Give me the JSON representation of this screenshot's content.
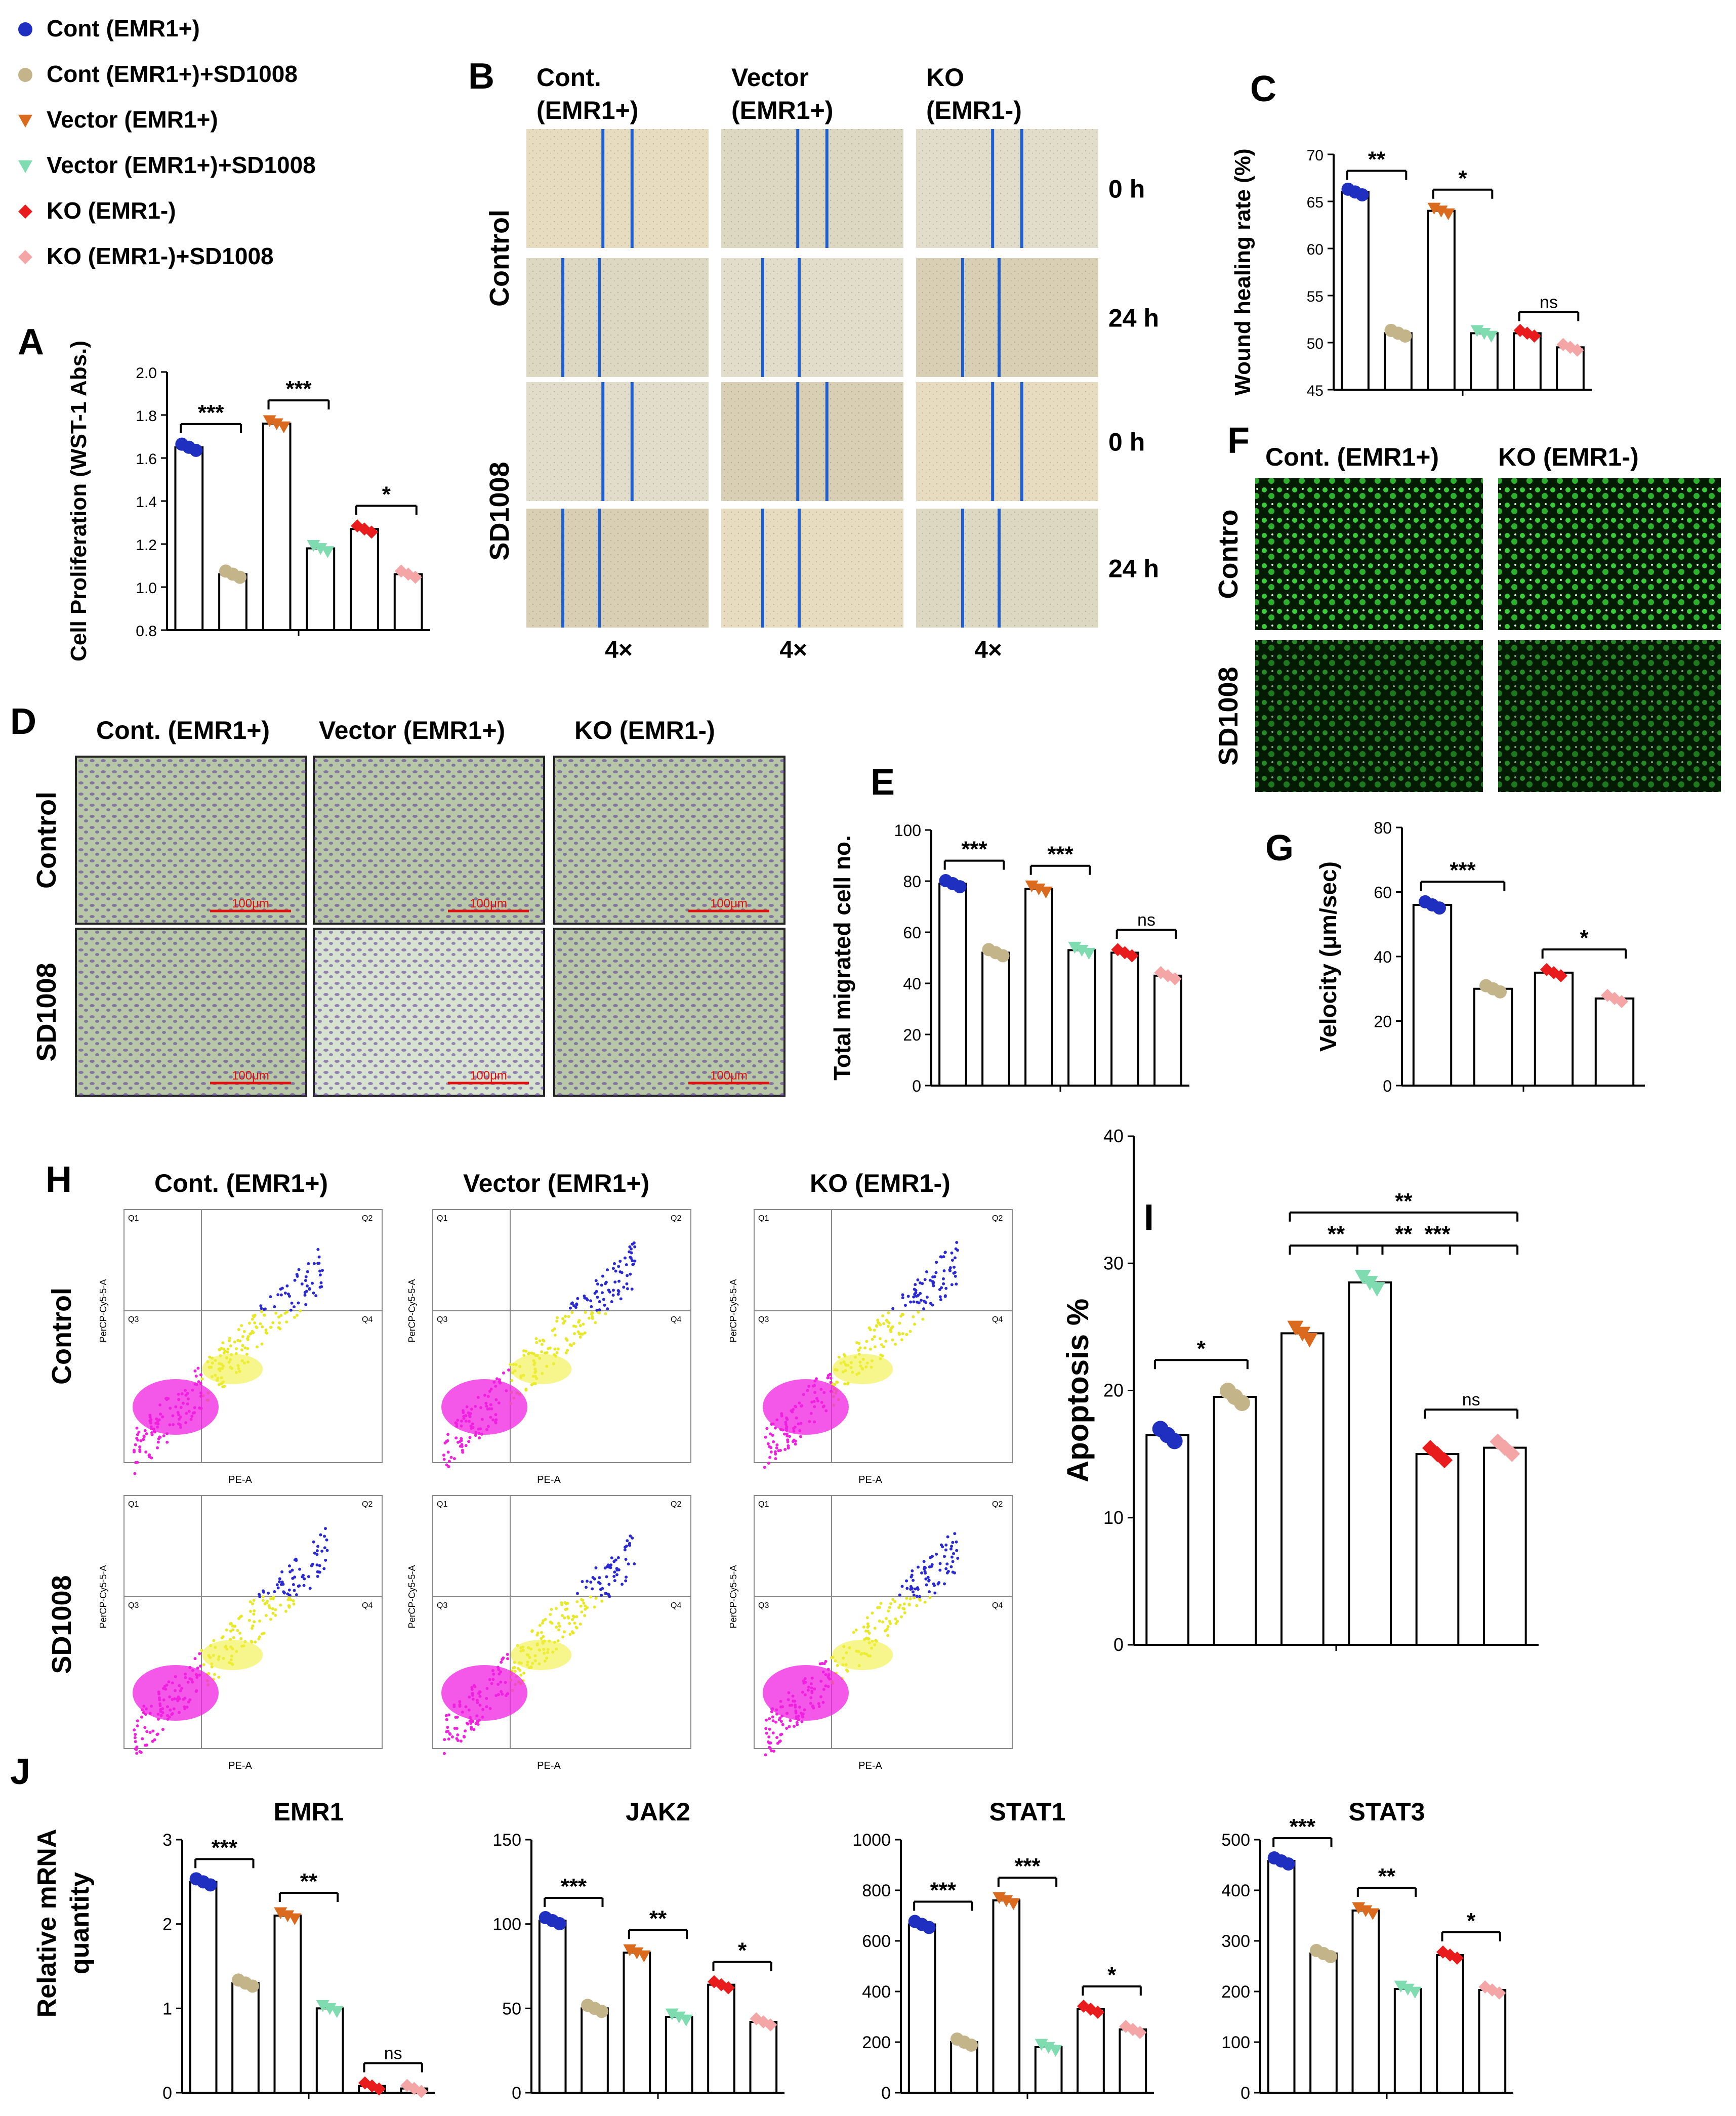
{
  "legend": [
    {
      "name": "Cont (EMR1+)",
      "color": "#1f2fbf",
      "marker": "circle"
    },
    {
      "name": "Cont (EMR1+)+SD1008",
      "color": "#c4b48a",
      "marker": "circle"
    },
    {
      "name": "Vector (EMR1+)",
      "color": "#d96a1e",
      "marker": "triangle-down"
    },
    {
      "name": "Vector (EMR1+)+SD1008",
      "color": "#7fdcb0",
      "marker": "triangle-down"
    },
    {
      "name": "KO (EMR1-)",
      "color": "#e81c1c",
      "marker": "diamond"
    },
    {
      "name": "KO (EMR1-)+SD1008",
      "color": "#f4a6a6",
      "marker": "diamond"
    }
  ],
  "panels": {
    "A": "A",
    "B": "B",
    "C": "C",
    "D": "D",
    "E": "E",
    "F": "F",
    "G": "G",
    "H": "H",
    "I": "I",
    "J": "J"
  },
  "panel_B": {
    "columns": [
      "Cont.\n(EMR1+)",
      "Vector\n(EMR1+)",
      "KO\n(EMR1-)"
    ],
    "rows": [
      "Control",
      "SD1008"
    ],
    "times": [
      "0 h",
      "24 h",
      "0 h",
      "24 h"
    ],
    "mag": [
      "4×",
      "4×",
      "4×"
    ]
  },
  "panel_D": {
    "columns": [
      "Cont. (EMR1+)",
      "Vector (EMR1+)",
      "KO (EMR1-)"
    ],
    "rows": [
      "Control",
      "SD1008"
    ],
    "scale": "100μm"
  },
  "panel_F": {
    "columns": [
      "Cont. (EMR1+)",
      "KO (EMR1-)"
    ],
    "rows": [
      "Contro",
      "SD1008"
    ]
  },
  "panel_H": {
    "columns": [
      "Cont. (EMR1+)",
      "Vector (EMR1+)",
      "KO (EMR1-)"
    ],
    "rows": [
      "Control",
      "SD1008"
    ],
    "xlabel": "PE-A",
    "ylabel": "PerCP-Cy5-5-A",
    "quadrants": [
      "Q1",
      "Q2",
      "Q3",
      "Q4"
    ]
  },
  "panel_J": {
    "ylabel": "Relative mRNA quantity"
  },
  "chart_data": [
    {
      "id": "A",
      "type": "bar",
      "ylabel": "Cell Proliferation (WST-1 Abs.)",
      "ylim": [
        0.8,
        2.0
      ],
      "yticks": [
        "0.8",
        "1.0",
        "1.2",
        "1.4",
        "1.6",
        "1.8",
        "2.0"
      ],
      "values": [
        1.65,
        1.06,
        1.76,
        1.18,
        1.27,
        1.06
      ],
      "sig": [
        {
          "a": 0,
          "b": 1,
          "label": "***"
        },
        {
          "a": 2,
          "b": 3,
          "label": "***"
        },
        {
          "a": 4,
          "b": 5,
          "label": "*"
        }
      ]
    },
    {
      "id": "C",
      "type": "bar",
      "ylabel": "Wound healing rate (%)",
      "ylim": [
        45,
        70
      ],
      "yticks": [
        "45",
        "50",
        "55",
        "60",
        "65",
        "70"
      ],
      "values": [
        66,
        51,
        64,
        51,
        51,
        49.5
      ],
      "sig": [
        {
          "a": 0,
          "b": 1,
          "label": "**"
        },
        {
          "a": 2,
          "b": 3,
          "label": "*"
        },
        {
          "a": 4,
          "b": 5,
          "label": "ns"
        }
      ]
    },
    {
      "id": "E",
      "type": "bar",
      "ylabel": "Total migrated cell no.",
      "ylim": [
        0,
        100
      ],
      "yticks": [
        "0",
        "20",
        "40",
        "60",
        "80",
        "100"
      ],
      "values": [
        79,
        52,
        77,
        53,
        52,
        43
      ],
      "sig": [
        {
          "a": 0,
          "b": 1,
          "label": "***"
        },
        {
          "a": 2,
          "b": 3,
          "label": "***"
        },
        {
          "a": 4,
          "b": 5,
          "label": "ns"
        }
      ]
    },
    {
      "id": "G",
      "type": "bar",
      "ylabel": "Velocity (μm/sec)",
      "ylim": [
        0,
        80
      ],
      "yticks": [
        "0",
        "20",
        "40",
        "60",
        "80"
      ],
      "series_idx": [
        0,
        1,
        4,
        5
      ],
      "values": [
        56,
        30,
        35,
        27
      ],
      "sig": [
        {
          "a": 0,
          "b": 1,
          "label": "***"
        },
        {
          "a": 2,
          "b": 3,
          "label": "*"
        }
      ]
    },
    {
      "id": "I",
      "type": "bar",
      "ylabel": "Apoptosis %",
      "ylim": [
        0,
        40
      ],
      "yticks": [
        "0",
        "10",
        "20",
        "30",
        "40"
      ],
      "values": [
        16.5,
        19.5,
        24.5,
        28.5,
        15,
        15.5
      ],
      "sig": [
        {
          "a": 0,
          "b": 1,
          "label": "*"
        },
        {
          "a": 3,
          "b": 4,
          "label": "**"
        },
        {
          "a": 2,
          "b": 3,
          "label": "**"
        },
        {
          "a": 4,
          "b": 5,
          "label": "ns"
        },
        {
          "a": 3,
          "b": 5,
          "label": "***"
        },
        {
          "a": 2,
          "b": 5,
          "label": "**"
        }
      ]
    },
    {
      "id": "J1",
      "type": "bar",
      "title": "EMR1",
      "ylim": [
        0,
        3
      ],
      "yticks": [
        "0",
        "1",
        "2",
        "3"
      ],
      "values": [
        2.5,
        1.3,
        2.1,
        1.0,
        0.08,
        0.05
      ],
      "sig": [
        {
          "a": 0,
          "b": 1,
          "label": "***"
        },
        {
          "a": 2,
          "b": 3,
          "label": "**"
        },
        {
          "a": 4,
          "b": 5,
          "label": "ns"
        }
      ]
    },
    {
      "id": "J2",
      "type": "bar",
      "title": "JAK2",
      "ylim": [
        0,
        150
      ],
      "yticks": [
        "0",
        "50",
        "100",
        "150"
      ],
      "values": [
        102,
        50,
        83,
        45,
        64,
        42
      ],
      "sig": [
        {
          "a": 0,
          "b": 1,
          "label": "***"
        },
        {
          "a": 2,
          "b": 3,
          "label": "**"
        },
        {
          "a": 4,
          "b": 5,
          "label": "*"
        }
      ]
    },
    {
      "id": "J3",
      "type": "bar",
      "title": "STAT1",
      "ylim": [
        0,
        1000
      ],
      "yticks": [
        "0",
        "200",
        "400",
        "600",
        "800",
        "1000"
      ],
      "values": [
        665,
        200,
        760,
        180,
        330,
        250
      ],
      "sig": [
        {
          "a": 0,
          "b": 1,
          "label": "***"
        },
        {
          "a": 2,
          "b": 3,
          "label": "***"
        },
        {
          "a": 4,
          "b": 5,
          "label": "*"
        }
      ]
    },
    {
      "id": "J4",
      "type": "bar",
      "title": "STAT3",
      "ylim": [
        0,
        500
      ],
      "yticks": [
        "0",
        "100",
        "200",
        "300",
        "400",
        "500"
      ],
      "values": [
        458,
        275,
        360,
        205,
        272,
        203
      ],
      "sig": [
        {
          "a": 0,
          "b": 1,
          "label": "***"
        },
        {
          "a": 2,
          "b": 3,
          "label": "**"
        },
        {
          "a": 4,
          "b": 5,
          "label": "*"
        }
      ]
    }
  ]
}
